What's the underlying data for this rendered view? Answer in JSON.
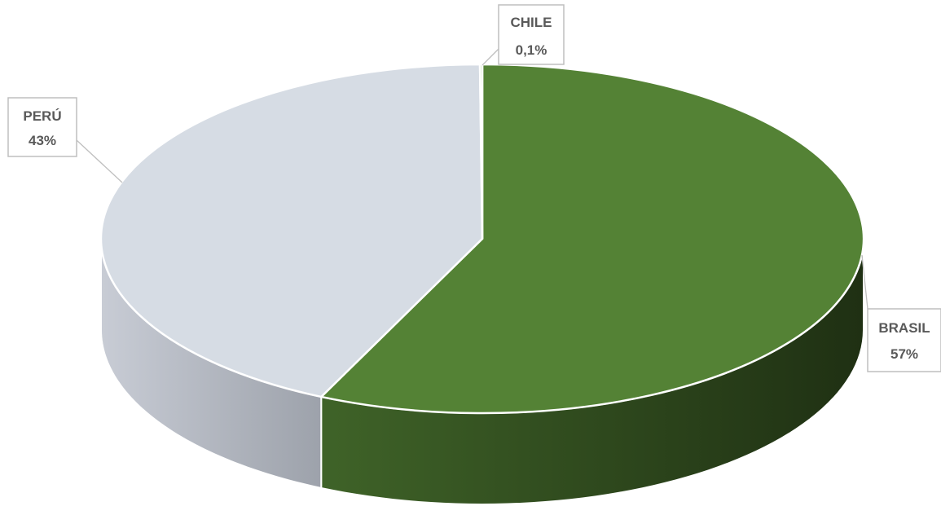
{
  "chart_data": {
    "type": "pie",
    "style": "3d",
    "title": "",
    "slices": [
      {
        "label": "BRASIL",
        "value": 57,
        "value_label": "57%",
        "color": "#548235"
      },
      {
        "label": "PERÚ",
        "value": 43,
        "value_label": "43%",
        "color": "#d6dce4"
      },
      {
        "label": "CHILE",
        "value": 0.1,
        "value_label": "0,1%",
        "color": "#a9d18e"
      }
    ],
    "legend": "none",
    "data_labels": "callouts"
  }
}
